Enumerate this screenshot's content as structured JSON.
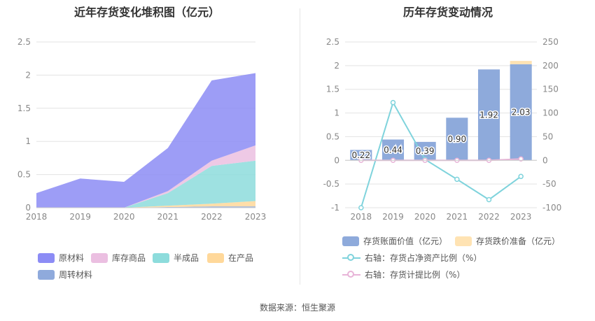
{
  "left_chart": {
    "title": "近年存货变化堆积图（亿元）",
    "chart_data": {
      "type": "area",
      "x": [
        "2018",
        "2019",
        "2020",
        "2021",
        "2022",
        "2023"
      ],
      "ylim": [
        0,
        2.5
      ],
      "yticks": [
        "0",
        "0.5",
        "1",
        "1.5",
        "2",
        "2.5"
      ],
      "grid": true,
      "legend_position": "bottom",
      "series": [
        {
          "name": "周转材料",
          "color": "#8faadc",
          "values": [
            0,
            0,
            0,
            0.01,
            0.02,
            0.02
          ]
        },
        {
          "name": "在产品",
          "color": "#ffd89a",
          "values": [
            0,
            0,
            0,
            0.02,
            0.04,
            0.08
          ]
        },
        {
          "name": "半成品",
          "color": "#8ddcdc",
          "values": [
            0,
            0,
            0,
            0.19,
            0.57,
            0.61
          ]
        },
        {
          "name": "库存商品",
          "color": "#ebbfe1",
          "values": [
            0,
            0,
            0,
            0.03,
            0.08,
            0.23
          ]
        },
        {
          "name": "原材料",
          "color": "#8c8cf5",
          "values": [
            0.22,
            0.44,
            0.39,
            0.65,
            1.21,
            1.09
          ]
        }
      ],
      "legend_order": [
        "原材料",
        "库存商品",
        "半成品",
        "在产品",
        "周转材料"
      ]
    }
  },
  "right_chart": {
    "title": "历年存货变动情况",
    "chart_data": {
      "type": "bar",
      "categories": [
        "2018",
        "2019",
        "2020",
        "2021",
        "2022",
        "2023"
      ],
      "ylim_left": [
        -1,
        2.5
      ],
      "yticks_left": [
        "-1",
        "-0.5",
        "0",
        "0.5",
        "1",
        "1.5",
        "2",
        "2.5"
      ],
      "ylim_right": [
        -100,
        250
      ],
      "yticks_right": [
        "-100",
        "-50",
        "0",
        "50",
        "100",
        "150",
        "200",
        "250"
      ],
      "grid": true,
      "legend_position": "bottom",
      "bars": [
        {
          "name": "存货账面价值（亿元）",
          "color": "#8eaadb",
          "values": [
            0.22,
            0.44,
            0.39,
            0.9,
            1.92,
            2.03
          ],
          "labels": [
            "0.22",
            "0.44",
            "0.39",
            "0.90",
            "1.92",
            "2.03"
          ]
        },
        {
          "name": "存货跌价准备（亿元）",
          "color": "#ffe3b3",
          "values": [
            0,
            0,
            0,
            0,
            0,
            0.07
          ]
        }
      ],
      "lines": [
        {
          "name": "右轴：存货占净资产比例（%）",
          "color": "#7fd3dc",
          "axis": "right",
          "values": [
            -100,
            122,
            2,
            -40,
            -83,
            -34
          ]
        },
        {
          "name": "右轴：存货计提比例（%）",
          "color": "#e8b4d8",
          "axis": "right",
          "values": [
            0,
            0,
            0,
            0,
            0,
            3
          ]
        }
      ]
    }
  },
  "footer": "数据来源：恒生聚源"
}
